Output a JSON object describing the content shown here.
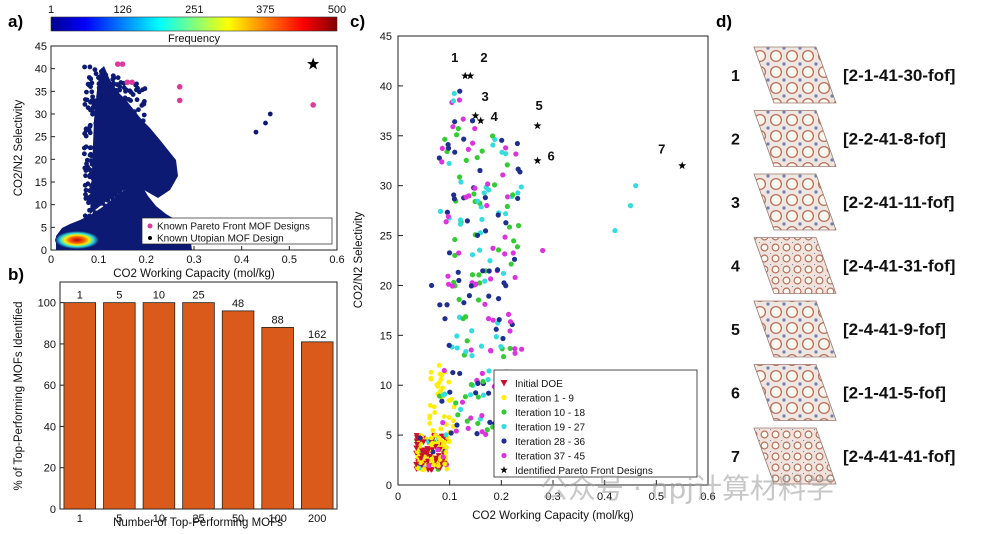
{
  "panels": {
    "a": "a)",
    "b": "b)",
    "c": "c)",
    "d": "d)"
  },
  "watermark": "公众号 · npj计算材料学",
  "chart_data": [
    {
      "id": "a",
      "type": "scatter",
      "xlabel": "CO2 Working Capacity (mol/kg)",
      "ylabel": "CO2/N2 Selectivity",
      "xlim": [
        0,
        0.6
      ],
      "ylim": [
        0,
        45
      ],
      "xticks": [
        0,
        0.1,
        0.2,
        0.3,
        0.4,
        0.5,
        0.6
      ],
      "yticks": [
        0,
        5,
        10,
        15,
        20,
        25,
        30,
        35,
        40,
        45
      ],
      "colorbar": {
        "label": "Frequency",
        "ticks": [
          1,
          126,
          251,
          375,
          500
        ],
        "colors": [
          "#00008f",
          "#0000ff",
          "#00ffff",
          "#ffff00",
          "#ff0000",
          "#800000"
        ]
      },
      "density_color": "#0d1a73",
      "series": [
        {
          "name": "Known Pareto Front MOF Designs",
          "color": "#e0389a",
          "x": [
            0.14,
            0.15,
            0.16,
            0.17,
            0.27,
            0.27,
            0.55
          ],
          "y": [
            41,
            41,
            37,
            37,
            36,
            33,
            32
          ]
        },
        {
          "name": "Known Utopian MOF Design",
          "color": "#000000",
          "x": [
            0.55
          ],
          "y": [
            41
          ]
        }
      ],
      "outliers": {
        "x": [
          0.43,
          0.45,
          0.46
        ],
        "y": [
          26,
          28,
          30
        ]
      }
    },
    {
      "id": "b",
      "type": "bar",
      "xlabel": "Number of Top-Performing MOFs",
      "ylabel": "% of Top-Performing MOFs Identified",
      "categories": [
        "1",
        "5",
        "10",
        "25",
        "50",
        "100",
        "200"
      ],
      "values": [
        100,
        100,
        100,
        100,
        96,
        88,
        81
      ],
      "labels": [
        "1",
        "5",
        "10",
        "25",
        "48",
        "88",
        "162"
      ],
      "ylim": [
        0,
        110
      ],
      "yticks": [
        0,
        20,
        40,
        60,
        80,
        100
      ],
      "color": "#d95a1a"
    },
    {
      "id": "c",
      "type": "scatter",
      "xlabel": "CO2 Working Capacity (mol/kg)",
      "ylabel": "CO2/N2 Selectivity",
      "xlim": [
        0,
        0.6
      ],
      "ylim": [
        0,
        45
      ],
      "xticks": [
        0,
        0.1,
        0.2,
        0.3,
        0.4,
        0.5,
        0.6
      ],
      "yticks": [
        0,
        5,
        10,
        15,
        20,
        25,
        30,
        35,
        40,
        45
      ],
      "legend": [
        {
          "name": "Initial DOE",
          "color": "#c8102e",
          "marker": "triangle"
        },
        {
          "name": "Iteration 1 - 9",
          "color": "#ffee00",
          "marker": "circle"
        },
        {
          "name": "Iteration 10 - 18",
          "color": "#33cc33",
          "marker": "circle"
        },
        {
          "name": "Iteration 19 - 27",
          "color": "#33dddd",
          "marker": "circle"
        },
        {
          "name": "Iteration 28 - 36",
          "color": "#1f2f8f",
          "marker": "circle"
        },
        {
          "name": "Iteration 37 - 45",
          "color": "#dd33dd",
          "marker": "circle"
        },
        {
          "name": "Identified Pareto Front Designs",
          "color": "#000000",
          "marker": "star"
        }
      ],
      "pareto": {
        "labels": [
          "1",
          "2",
          "3",
          "4",
          "5",
          "6",
          "7"
        ],
        "x": [
          0.13,
          0.14,
          0.15,
          0.16,
          0.27,
          0.27,
          0.55
        ],
        "y": [
          41,
          41,
          37,
          36.5,
          36,
          32.5,
          32
        ]
      },
      "iter19_27_outliers": {
        "x": [
          0.42,
          0.45,
          0.46
        ],
        "y": [
          25.5,
          28,
          30
        ]
      }
    }
  ],
  "structures": [
    {
      "num": "1",
      "name": "[2-1-41-30-fof]"
    },
    {
      "num": "2",
      "name": "[2-2-41-8-fof]"
    },
    {
      "num": "3",
      "name": "[2-2-41-11-fof]"
    },
    {
      "num": "4",
      "name": "[2-4-41-31-fof]"
    },
    {
      "num": "5",
      "name": "[2-4-41-9-fof]"
    },
    {
      "num": "6",
      "name": "[2-1-41-5-fof]"
    },
    {
      "num": "7",
      "name": "[2-4-41-41-fof]"
    }
  ]
}
